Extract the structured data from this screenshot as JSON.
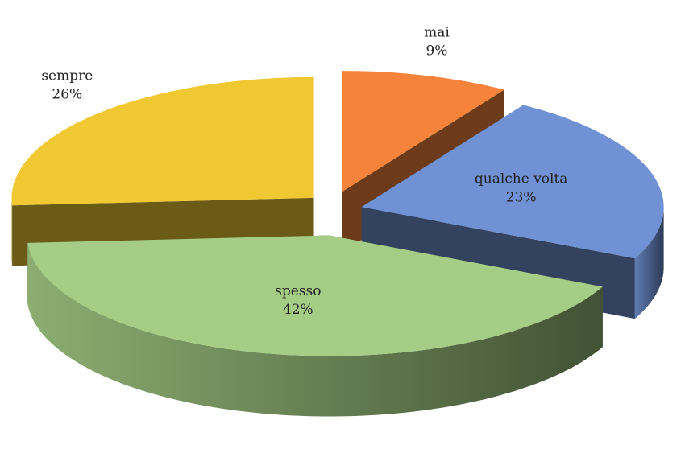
{
  "chart_data": {
    "type": "pie",
    "categories": [
      "mai",
      "qualche volta",
      "spesso",
      "sempre"
    ],
    "values": [
      9,
      23,
      42,
      26
    ],
    "value_labels": [
      "9%",
      "23%",
      "42%",
      "26%"
    ],
    "colors": [
      "#f5843a",
      "#7092d4",
      "#a5cd85",
      "#f0c832"
    ]
  }
}
